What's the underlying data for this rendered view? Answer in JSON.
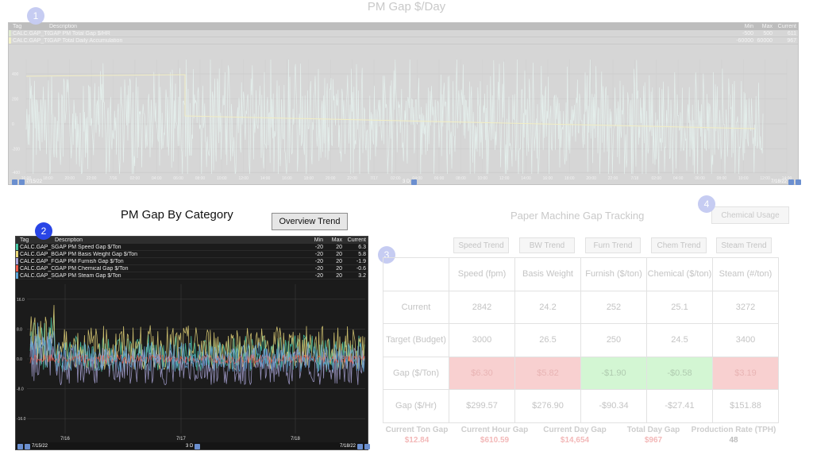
{
  "top_trend": {
    "title": "PM Gap $/Day",
    "legend_headers": {
      "tag": "Tag",
      "description": "Description",
      "min": "Min",
      "max": "Max",
      "current": "Current"
    },
    "legend_rows": [
      {
        "tag": "CALC.GAP_TO",
        "description": "GAP PM Total Gap $/HR",
        "min": "-500",
        "max": "500",
        "current": "611",
        "color": "#dfe9d0"
      },
      {
        "tag": "CALC.GAP_TO",
        "description": "GAP Total Daily Accumulation",
        "min": "-60000",
        "max": "60000",
        "current": "967",
        "color": "#f2f0c6"
      }
    ],
    "y_ticks": [
      "400",
      "200",
      "0",
      "-200",
      "-400"
    ],
    "x_ticks": [
      "16:00",
      "18:00",
      "20:00",
      "22:00",
      "7/16",
      "02:00",
      "04:00",
      "06:00",
      "08:00",
      "10:00",
      "12:00",
      "14:00",
      "16:00",
      "18:00",
      "20:00",
      "22:00",
      "7/17",
      "02:00",
      "04:00",
      "06:00",
      "08:00",
      "10:00",
      "12:00",
      "14:00",
      "16:00",
      "18:00",
      "20:00",
      "22:00",
      "7/18",
      "02:00",
      "04:00",
      "06:00",
      "08:00",
      "10:00",
      "12:00",
      "14:00"
    ],
    "start_date": "7/15/22",
    "end_date": "7/18/22",
    "range": "3 D",
    "series_colors": {
      "hr": "#e6f2ee",
      "daily": "#f2eec4"
    }
  },
  "category_trend": {
    "title": "PM Gap By Category",
    "overview_button": "Overview Trend",
    "legend_headers": {
      "tag": "Tag",
      "description": "Description",
      "min": "Min",
      "max": "Max",
      "current": "Current"
    },
    "legend_rows": [
      {
        "tag": "CALC.GAP_S",
        "description": "GAP PM Speed Gap $/Ton",
        "min": "-20",
        "max": "20",
        "current": "6.3",
        "color": "#49c9a7"
      },
      {
        "tag": "CALC.GAP_B",
        "description": "GAP PM Basis Weight Gap $/Ton",
        "min": "-20",
        "max": "20",
        "current": "5.8",
        "color": "#e8d77a"
      },
      {
        "tag": "CALC.GAP_F",
        "description": "GAP PM Furnish Gap $/Ton",
        "min": "-20",
        "max": "20",
        "current": "-1.9",
        "color": "#a9a3d6"
      },
      {
        "tag": "CALC.GAP_C",
        "description": "GAP PM Chemical Gap $/Ton",
        "min": "-20",
        "max": "20",
        "current": "-0.6",
        "color": "#ef5a4a"
      },
      {
        "tag": "CALC.GAP_S",
        "description": "GAP PM Steam Gap $/Ton",
        "min": "-20",
        "max": "20",
        "current": "3.2",
        "color": "#5fa6d8"
      }
    ],
    "y_ticks": [
      "16.0",
      "8.0",
      "0.0",
      "-8.0",
      "-16.0"
    ],
    "x_ticks": [
      "7/16",
      "7/17",
      "7/18"
    ],
    "start_date": "7/15/22",
    "end_date": "7/18/22",
    "range": "3 D"
  },
  "markers": [
    "1",
    "2",
    "3",
    "4"
  ],
  "gap_tracking": {
    "title": "Paper Machine Gap Tracking",
    "chemical_button": "Chemical Usage",
    "trend_buttons": [
      "Speed Trend",
      "BW Trend",
      "Furn Trend",
      "Chem Trend",
      "Steam Trend"
    ],
    "columns": [
      "Speed (fpm)",
      "Basis Weight",
      "Furnish ($/ton)",
      "Chemical ($/ton)",
      "Steam (#/ton)"
    ],
    "rows": [
      {
        "label": "Current",
        "values": [
          "2842",
          "24.2",
          "252",
          "25.1",
          "3272"
        ],
        "status": [
          "",
          "",
          "",
          "",
          ""
        ]
      },
      {
        "label": "Target (Budget)",
        "values": [
          "3000",
          "26.5",
          "250",
          "24.5",
          "3400"
        ],
        "status": [
          "",
          "",
          "",
          "",
          ""
        ]
      },
      {
        "label": "Gap ($/Ton)",
        "values": [
          "$6.30",
          "$5.82",
          "-$1.90",
          "-$0.58",
          "$3.19"
        ],
        "status": [
          "red",
          "red",
          "green",
          "green",
          "red"
        ]
      },
      {
        "label": "Gap ($/Hr)",
        "values": [
          "$299.57",
          "$276.90",
          "-$90.34",
          "-$27.41",
          "$151.88"
        ],
        "status": [
          "",
          "",
          "",
          "",
          ""
        ]
      }
    ],
    "summary": [
      {
        "label": "Current Ton Gap",
        "value": "$12.84"
      },
      {
        "label": "Current Hour Gap",
        "value": "$610.59"
      },
      {
        "label": "Current Day Gap",
        "value": "$14,654"
      },
      {
        "label": "Total Day Gap",
        "value": "$967"
      },
      {
        "label": "Production Rate (TPH)",
        "value": "48"
      }
    ]
  }
}
